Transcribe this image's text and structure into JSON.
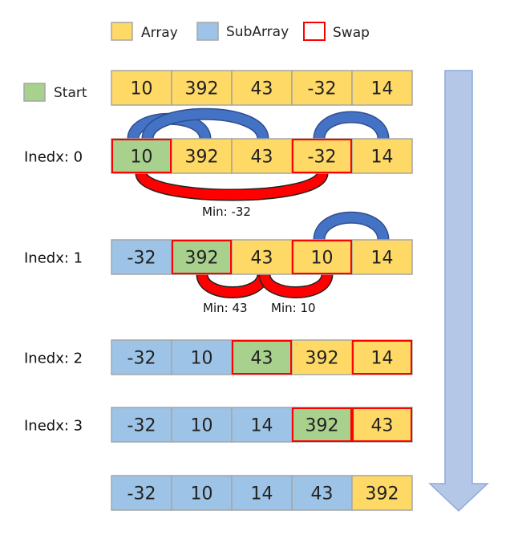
{
  "colors": {
    "array": "#FFD966",
    "subarray": "#9DC3E6",
    "start": "#A9D18E",
    "swap": "#FF0000",
    "cell_border": "#A6A6A6",
    "arc_blue": "#4472C4",
    "arc_red": "#FF0000",
    "down_arrow": "#B4C7E7"
  },
  "legend": {
    "array": "Array",
    "subarray": "SubArray",
    "swap": "Swap",
    "start": "Start"
  },
  "rows": [
    {
      "label": "",
      "cells": [
        {
          "v": "10",
          "t": "array"
        },
        {
          "v": "392",
          "t": "array"
        },
        {
          "v": "43",
          "t": "array"
        },
        {
          "v": "-32",
          "t": "array"
        },
        {
          "v": "14",
          "t": "array"
        }
      ]
    },
    {
      "label": "Inedx: 0",
      "cells": [
        {
          "v": "10",
          "t": "start",
          "swap": true
        },
        {
          "v": "392",
          "t": "array"
        },
        {
          "v": "43",
          "t": "array"
        },
        {
          "v": "-32",
          "t": "array",
          "swap": true
        },
        {
          "v": "14",
          "t": "array"
        }
      ]
    },
    {
      "label": "Inedx: 1",
      "cells": [
        {
          "v": "-32",
          "t": "subarray"
        },
        {
          "v": "392",
          "t": "start",
          "swap": true
        },
        {
          "v": "43",
          "t": "array"
        },
        {
          "v": "10",
          "t": "array",
          "swap": true
        },
        {
          "v": "14",
          "t": "array"
        }
      ]
    },
    {
      "label": "Inedx: 2",
      "cells": [
        {
          "v": "-32",
          "t": "subarray"
        },
        {
          "v": "10",
          "t": "subarray"
        },
        {
          "v": "43",
          "t": "start",
          "swap": true
        },
        {
          "v": "392",
          "t": "array"
        },
        {
          "v": "14",
          "t": "array",
          "swap": true
        }
      ]
    },
    {
      "label": "Inedx: 3",
      "cells": [
        {
          "v": "-32",
          "t": "subarray"
        },
        {
          "v": "10",
          "t": "subarray"
        },
        {
          "v": "14",
          "t": "subarray"
        },
        {
          "v": "392",
          "t": "start",
          "swap": true
        },
        {
          "v": "43",
          "t": "array",
          "swap": true
        }
      ]
    },
    {
      "label": "",
      "cells": [
        {
          "v": "-32",
          "t": "subarray"
        },
        {
          "v": "10",
          "t": "subarray"
        },
        {
          "v": "14",
          "t": "subarray"
        },
        {
          "v": "43",
          "t": "subarray"
        },
        {
          "v": "392",
          "t": "array"
        }
      ]
    }
  ],
  "min_labels": {
    "row0": "Min: -32",
    "row1_a": "Min: 43",
    "row1_b": "Min: 10"
  }
}
